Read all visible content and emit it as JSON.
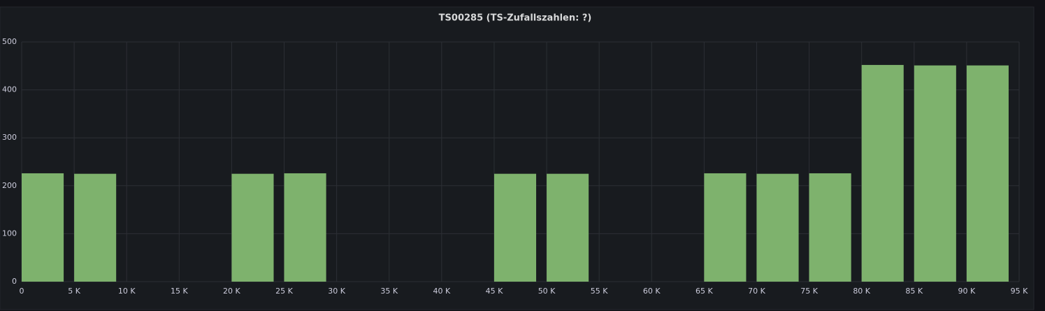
{
  "chart_data": {
    "type": "histogram",
    "title": "TS00285 (TS-Zufallszahlen: ?)",
    "bins": [
      0,
      5000,
      10000,
      15000,
      20000,
      25000,
      30000,
      35000,
      40000,
      45000,
      50000,
      55000,
      60000,
      65000,
      70000,
      75000,
      80000,
      85000,
      90000,
      95000
    ],
    "values": [
      226,
      225,
      0,
      0,
      225,
      226,
      0,
      0,
      0,
      225,
      225,
      0,
      0,
      226,
      225,
      226,
      452,
      451,
      451
    ],
    "color": "#7eb26d",
    "xlim": [
      0,
      95000
    ],
    "xticks": [
      0,
      {
        "value": 5000,
        "label": "5 K"
      },
      {
        "value": 10000,
        "label": "10 K"
      },
      {
        "value": 15000,
        "label": "15 K"
      },
      {
        "value": 20000,
        "label": "20 K"
      },
      {
        "value": 25000,
        "label": "25 K"
      },
      {
        "value": 30000,
        "label": "30 K"
      },
      {
        "value": 35000,
        "label": "35 K"
      },
      {
        "value": 40000,
        "label": "40 K"
      },
      {
        "value": 45000,
        "label": "45 K"
      },
      {
        "value": 50000,
        "label": "50 K"
      },
      {
        "value": 55000,
        "label": "55 K"
      },
      {
        "value": 60000,
        "label": "60 K"
      },
      {
        "value": 65000,
        "label": "65 K"
      },
      {
        "value": 70000,
        "label": "70 K"
      },
      {
        "value": 75000,
        "label": "75 K"
      },
      {
        "value": 80000,
        "label": "80 K"
      },
      {
        "value": 85000,
        "label": "85 K"
      },
      {
        "value": 90000,
        "label": "90 K"
      },
      {
        "value": 95000,
        "label": "95 K"
      }
    ],
    "ylim": [
      0,
      500
    ],
    "yticks": [
      0,
      100,
      200,
      300,
      400,
      500
    ],
    "grid": true
  }
}
